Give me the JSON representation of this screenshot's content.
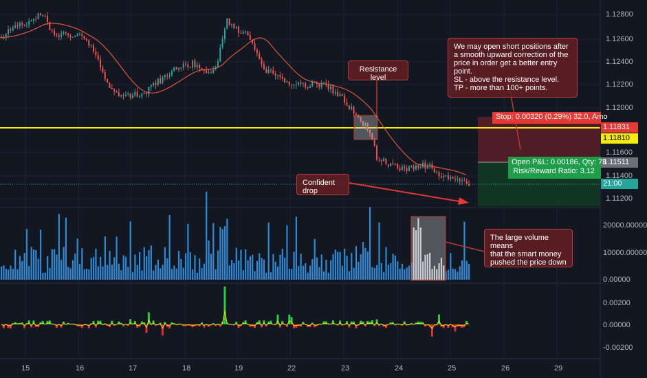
{
  "price_axis": {
    "ticks": [
      "1.12800",
      "1.12600",
      "1.12400",
      "1.12200",
      "1.12000",
      "1.11600",
      "1.11400",
      "1.11200"
    ],
    "tags": {
      "stop": "1.11831",
      "level": "1.11810",
      "entry": "1.11511",
      "last_time": "21:00"
    }
  },
  "volume_axis": {
    "ticks": [
      "20000.00000",
      "10000.00000",
      "0.00000"
    ]
  },
  "osc_axis": {
    "ticks": [
      "0.00200",
      "0.00000",
      "-0.00200"
    ]
  },
  "date_axis": {
    "labels": [
      "15",
      "16",
      "17",
      "18",
      "19",
      "22",
      "23",
      "24",
      "25",
      "26",
      "29"
    ]
  },
  "position": {
    "stop_text": "Stop: 0.00320 (0.29%) 32.0, Amo",
    "pnl_text": "Open P&L: 0.00186, Qty: 78",
    "rr_text": "Risk/Reward Ratio: 3.12"
  },
  "notes": {
    "resistance": "Resistance level",
    "confident": "Confident drop",
    "short_plan": "We may open short positions after\na smooth upward correction of the\nprice in order get a better entry point.\nSL - above the resistance level.\nTP - more than 100+ points.",
    "volume": "The large volume means\nthat the smart money\npushed the price down"
  },
  "colors": {
    "background": "#131722",
    "up": "#26a69a",
    "down": "#ef5350",
    "volume": "#2d8bd6",
    "yellow_line": "#f5e90d",
    "ma": "#e0553f"
  }
}
